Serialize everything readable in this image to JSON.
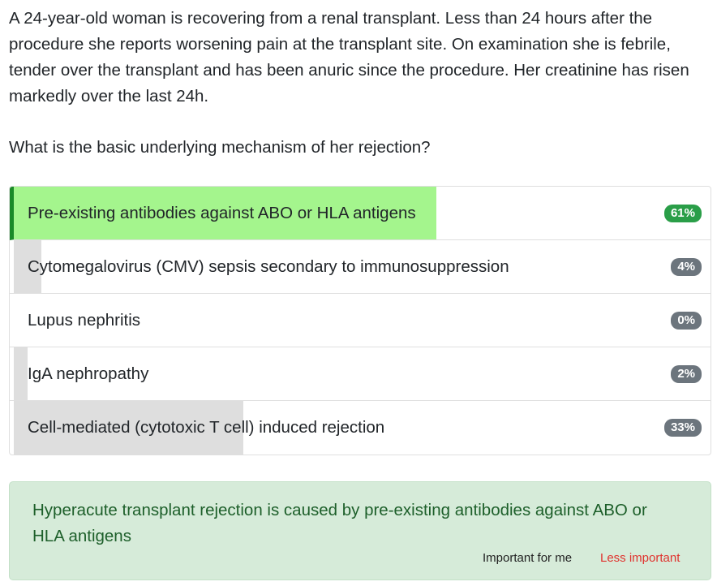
{
  "question": {
    "stem": "A 24-year-old woman is recovering from a renal transplant. Less than 24 hours after the procedure she reports worsening pain at the transplant site. On examination she is febrile, tender over the transplant and has been anuric since the procedure. Her creatinine has risen markedly over the last 24h.",
    "prompt": "What is the basic underlying mechanism of her rejection?"
  },
  "options": [
    {
      "label": "Pre-existing antibodies against ABO or HLA antigens",
      "percent_label": "61%",
      "percent": 61,
      "correct": true
    },
    {
      "label": "Cytomegalovirus (CMV) sepsis secondary to immunosuppression",
      "percent_label": "4%",
      "percent": 4,
      "correct": false
    },
    {
      "label": "Lupus nephritis",
      "percent_label": "0%",
      "percent": 0,
      "correct": false
    },
    {
      "label": "IgA nephropathy",
      "percent_label": "2%",
      "percent": 2,
      "correct": false
    },
    {
      "label": "Cell-mediated (cytotoxic T cell) induced rejection",
      "percent_label": "33%",
      "percent": 33,
      "correct": false
    }
  ],
  "colors": {
    "correct_bar": "#a4f58d",
    "other_bar": "#dedede",
    "correct_badge": "#2a9e48",
    "other_badge": "#6c757d"
  },
  "explanation": {
    "text": "Hyperacute transplant rejection is caused by pre-existing antibodies against ABO or HLA antigens",
    "important_label": "Important for me",
    "less_important_label": "Less important"
  }
}
